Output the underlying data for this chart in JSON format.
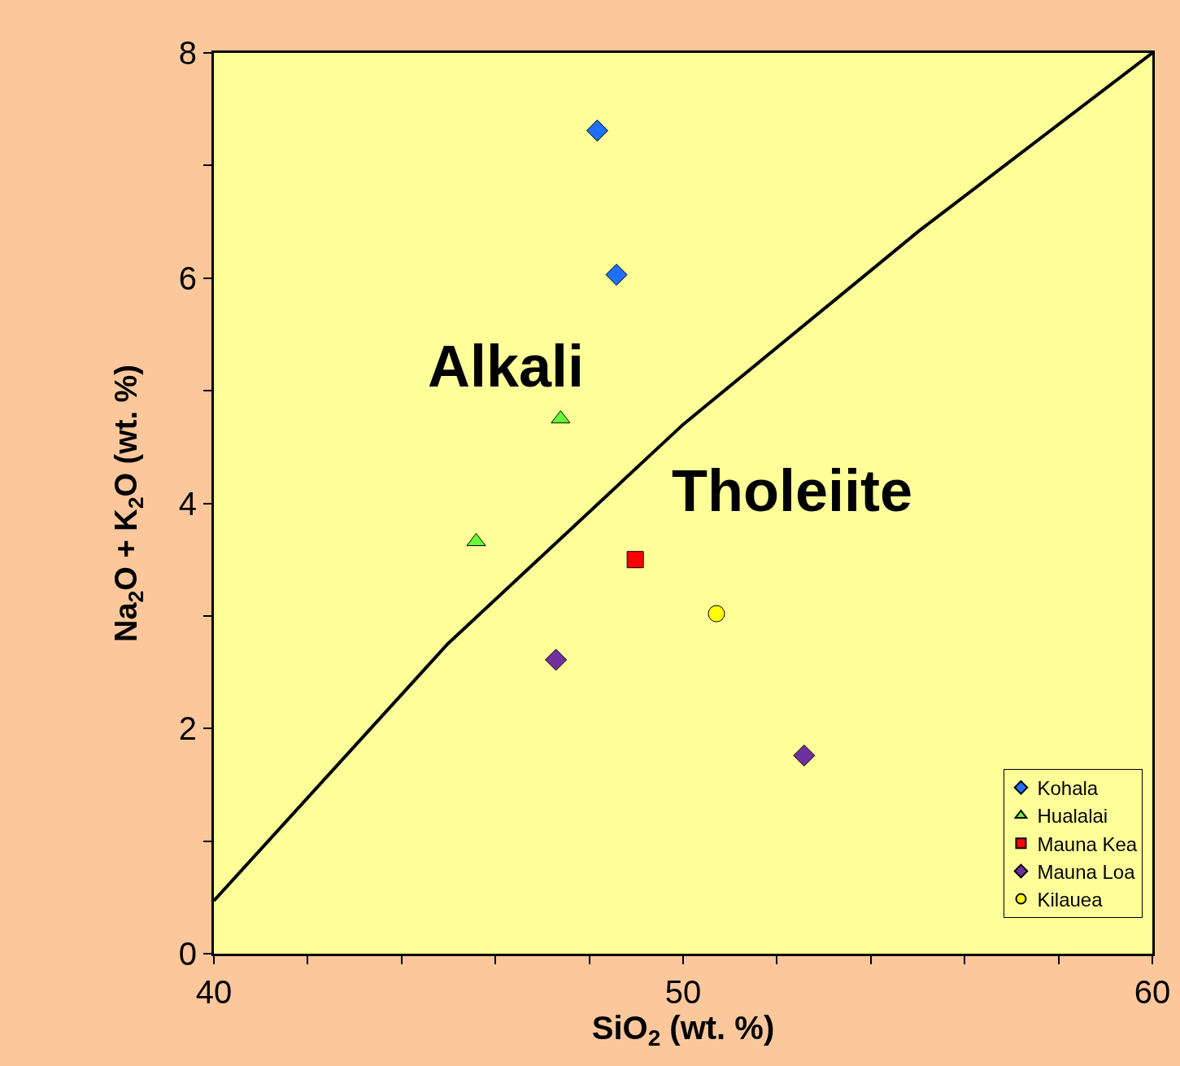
{
  "chart_data": {
    "type": "scatter",
    "xlabel": "SiO$_{2}$ (wt. %)",
    "ylabel": "Na$_{2}$O + K$_{2}$O (wt. %)",
    "xlim": [
      40,
      60
    ],
    "ylim": [
      0,
      8
    ],
    "xticks": [
      40,
      {
        "value": 42,
        "label": null
      },
      {
        "value": 44,
        "label": null
      },
      {
        "value": 46,
        "label": null
      },
      {
        "value": 48,
        "label": null
      },
      50,
      {
        "value": 52,
        "label": null
      },
      {
        "value": 54,
        "label": null
      },
      {
        "value": 56,
        "label": null
      },
      {
        "value": 58,
        "label": null
      },
      60
    ],
    "yticks": [
      0,
      {
        "value": 1,
        "label": null
      },
      2,
      {
        "value": 3,
        "label": null
      },
      4,
      {
        "value": 5,
        "label": null
      },
      6,
      {
        "value": 7,
        "label": null
      },
      8
    ],
    "grid": false,
    "legend": "bottom right",
    "series": [
      {
        "type": "line",
        "color": "#000000",
        "marker": "none",
        "line_style": "solid",
        "x": [
          40,
          44.98,
          50,
          55.03,
          60
        ],
        "values": [
          0.47,
          2.75,
          4.7,
          6.42,
          8
        ]
      },
      {
        "name": "Kohala",
        "color": "#1f6fff",
        "marker": "diamond",
        "x": [
          48.17,
          48.58
        ],
        "values": [
          7.31,
          6.03
        ]
      },
      {
        "name": "Hualalai",
        "color": "#66ff33",
        "marker": "triangle",
        "x": [
          47.39,
          45.59
        ],
        "values": [
          4.75,
          3.66
        ]
      },
      {
        "name": "Mauna Kea",
        "color": "#ff0000",
        "marker": "square",
        "x": [
          48.98
        ],
        "values": [
          3.5
        ]
      },
      {
        "name": "Mauna Loa",
        "color": "#7030a0",
        "marker": "diamond",
        "x": [
          47.29,
          52.58
        ],
        "values": [
          2.61,
          1.76
        ]
      },
      {
        "name": "Kilauea",
        "color": "#ffff00",
        "marker": "circle",
        "x": [
          50.71
        ],
        "values": [
          3.02
        ]
      }
    ],
    "annotations": [
      "Alkali",
      "Tholeiite"
    ]
  }
}
